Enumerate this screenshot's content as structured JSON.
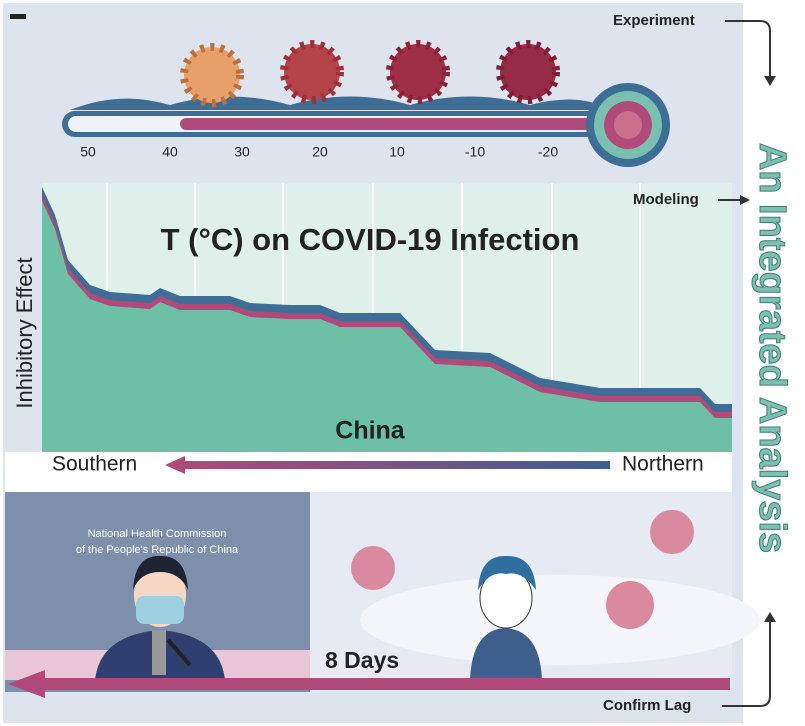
{
  "header": {
    "experiment": "Experiment",
    "modeling": "Modeling",
    "confirm_lag": "Confirm Lag",
    "side_title": "An Integrated Analysis"
  },
  "thermometer": {
    "labels": [
      50,
      40,
      30,
      20,
      10,
      -10,
      -20
    ]
  },
  "chart": {
    "title": "T (°C) on COVID-19 Infection",
    "y_label": "Inhibitory Effect",
    "region": "China",
    "left": "Southern",
    "right": "Northern"
  },
  "bottom": {
    "org_line1": "National Health Commission",
    "org_line2": "of the  People's Republic  of China",
    "lag": "8 Days"
  }
}
